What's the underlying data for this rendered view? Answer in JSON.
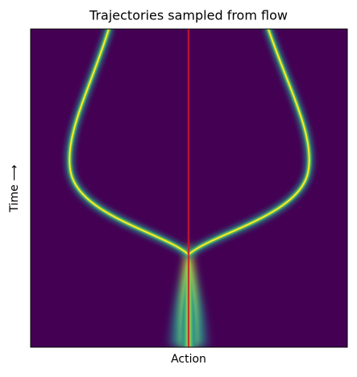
{
  "chart_data": {
    "type": "heatmap",
    "title": "Trajectories sampled from flow",
    "x_label": "Action",
    "y_label": "Time ⟶"
  }
}
